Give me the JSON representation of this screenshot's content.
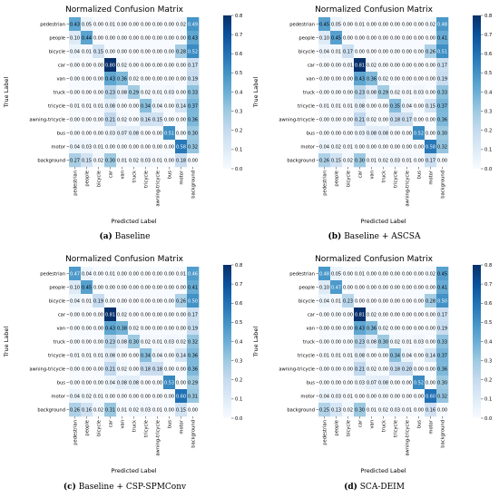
{
  "colormap": [
    "#f7fbff",
    "#deebf7",
    "#c6dbef",
    "#9ecae1",
    "#6baed6",
    "#4292c6",
    "#2171b5",
    "#08519c",
    "#08306b"
  ],
  "colorbar_ticks": [
    "0.0",
    "0.1",
    "0.2",
    "0.3",
    "0.4",
    "0.5",
    "0.6",
    "0.7",
    "0.8"
  ],
  "chart_data": [
    {
      "type": "heatmap",
      "title": "Normalized Confusion Matrix",
      "xlabel": "Predicted Label",
      "ylabel": "True Label",
      "caption_tag": "(a)",
      "caption_text": "Baseline",
      "vmin": 0.0,
      "vmax": 0.8,
      "labels": [
        "pedestrian",
        "people",
        "bicycle",
        "car",
        "van",
        "truck",
        "tricycle",
        "awning-tricycle",
        "bus",
        "motor",
        "background"
      ],
      "matrix": [
        [
          "0.43",
          "0.05",
          "0.00",
          "0.01",
          "0.00",
          "0.00",
          "0.00",
          "0.00",
          "0.00",
          "0.02",
          "0.49"
        ],
        [
          "0.10",
          "0.44",
          "0.00",
          "0.00",
          "0.00",
          "0.00",
          "0.00",
          "0.00",
          "0.00",
          "0.00",
          "0.43"
        ],
        [
          "0.04",
          "0.01",
          "0.15",
          "0.00",
          "0.00",
          "0.00",
          "0.00",
          "0.00",
          "0.00",
          "0.28",
          "0.52"
        ],
        [
          "0.00",
          "0.00",
          "0.00",
          "0.80",
          "0.02",
          "0.00",
          "0.00",
          "0.00",
          "0.00",
          "0.00",
          "0.17"
        ],
        [
          "0.00",
          "0.00",
          "0.00",
          "0.43",
          "0.36",
          "0.02",
          "0.00",
          "0.00",
          "0.00",
          "0.00",
          "0.19"
        ],
        [
          "0.00",
          "0.00",
          "0.00",
          "0.23",
          "0.08",
          "0.29",
          "0.02",
          "0.01",
          "0.03",
          "0.00",
          "0.33"
        ],
        [
          "0.01",
          "0.01",
          "0.01",
          "0.08",
          "0.00",
          "0.00",
          "0.34",
          "0.04",
          "0.00",
          "0.14",
          "0.37"
        ],
        [
          "0.00",
          "0.00",
          "0.00",
          "0.21",
          "0.02",
          "0.00",
          "0.16",
          "0.15",
          "0.00",
          "0.00",
          "0.36"
        ],
        [
          "0.00",
          "0.00",
          "0.00",
          "0.03",
          "0.07",
          "0.08",
          "0.00",
          "0.00",
          "0.51",
          "0.00",
          "0.30"
        ],
        [
          "0.04",
          "0.03",
          "0.01",
          "0.00",
          "0.00",
          "0.00",
          "0.00",
          "0.00",
          "0.00",
          "0.58",
          "0.32"
        ],
        [
          "0.27",
          "0.15",
          "0.02",
          "0.30",
          "0.01",
          "0.02",
          "0.03",
          "0.01",
          "0.00",
          "0.18",
          "0.00"
        ]
      ]
    },
    {
      "type": "heatmap",
      "title": "Normalized Confusion Matrix",
      "xlabel": "Predicted Label",
      "ylabel": "True Label",
      "caption_tag": "(b)",
      "caption_text": "Baseline + ASCSA",
      "vmin": 0.0,
      "vmax": 0.8,
      "labels": [
        "pedestrian",
        "people",
        "bicycle",
        "car",
        "van",
        "truck",
        "tricycle",
        "awning-tricycle",
        "bus",
        "motor",
        "background"
      ],
      "matrix": [
        [
          "0.45",
          "0.05",
          "0.00",
          "0.01",
          "0.00",
          "0.00",
          "0.00",
          "0.00",
          "0.00",
          "0.02",
          "0.48"
        ],
        [
          "0.10",
          "0.45",
          "0.00",
          "0.00",
          "0.00",
          "0.00",
          "0.00",
          "0.00",
          "0.00",
          "0.00",
          "0.41"
        ],
        [
          "0.04",
          "0.01",
          "0.17",
          "0.00",
          "0.00",
          "0.00",
          "0.00",
          "0.00",
          "0.00",
          "0.26",
          "0.51"
        ],
        [
          "0.00",
          "0.00",
          "0.01",
          "0.81",
          "0.02",
          "0.00",
          "0.00",
          "0.00",
          "0.00",
          "0.00",
          "0.17"
        ],
        [
          "0.00",
          "0.00",
          "0.00",
          "0.43",
          "0.36",
          "0.02",
          "0.00",
          "0.00",
          "0.00",
          "0.00",
          "0.19"
        ],
        [
          "0.00",
          "0.00",
          "0.00",
          "0.23",
          "0.08",
          "0.29",
          "0.02",
          "0.01",
          "0.03",
          "0.00",
          "0.33"
        ],
        [
          "0.01",
          "0.01",
          "0.01",
          "0.08",
          "0.00",
          "0.00",
          "0.35",
          "0.04",
          "0.00",
          "0.15",
          "0.37"
        ],
        [
          "0.00",
          "0.00",
          "0.00",
          "0.21",
          "0.02",
          "0.00",
          "0.18",
          "0.17",
          "0.00",
          "0.00",
          "0.36"
        ],
        [
          "0.00",
          "0.00",
          "0.00",
          "0.03",
          "0.08",
          "0.08",
          "0.00",
          "0.00",
          "0.52",
          "0.00",
          "0.30"
        ],
        [
          "0.04",
          "0.02",
          "0.01",
          "0.00",
          "0.00",
          "0.00",
          "0.00",
          "0.00",
          "0.00",
          "0.58",
          "0.32"
        ],
        [
          "0.26",
          "0.15",
          "0.02",
          "0.30",
          "0.01",
          "0.02",
          "0.03",
          "0.01",
          "0.00",
          "0.17",
          "0.00"
        ]
      ]
    },
    {
      "type": "heatmap",
      "title": "Normalized Confusion Matrix",
      "xlabel": "Predicted Label",
      "ylabel": "True Label",
      "caption_tag": "(c)",
      "caption_text": "Baseline + CSP-SPMConv",
      "vmin": 0.0,
      "vmax": 0.8,
      "labels": [
        "pedestrian",
        "people",
        "bicycle",
        "car",
        "van",
        "truck",
        "tricycle",
        "awning-tricycle",
        "bus",
        "motor",
        "background"
      ],
      "matrix": [
        [
          "0.47",
          "0.04",
          "0.00",
          "0.01",
          "0.00",
          "0.00",
          "0.00",
          "0.00",
          "0.00",
          "0.01",
          "0.46"
        ],
        [
          "0.10",
          "0.45",
          "0.00",
          "0.00",
          "0.00",
          "0.00",
          "0.00",
          "0.00",
          "0.00",
          "0.00",
          "0.41"
        ],
        [
          "0.04",
          "0.01",
          "0.19",
          "0.00",
          "0.00",
          "0.00",
          "0.00",
          "0.00",
          "0.00",
          "0.26",
          "0.50"
        ],
        [
          "0.00",
          "0.00",
          "0.00",
          "0.81",
          "0.02",
          "0.00",
          "0.00",
          "0.00",
          "0.00",
          "0.00",
          "0.17"
        ],
        [
          "0.00",
          "0.00",
          "0.00",
          "0.43",
          "0.38",
          "0.02",
          "0.00",
          "0.00",
          "0.00",
          "0.00",
          "0.19"
        ],
        [
          "0.00",
          "0.00",
          "0.00",
          "0.23",
          "0.08",
          "0.30",
          "0.02",
          "0.01",
          "0.03",
          "0.02",
          "0.32"
        ],
        [
          "0.01",
          "0.01",
          "0.01",
          "0.08",
          "0.00",
          "0.00",
          "0.34",
          "0.04",
          "0.00",
          "0.14",
          "0.36"
        ],
        [
          "0.00",
          "0.00",
          "0.00",
          "0.21",
          "0.02",
          "0.00",
          "0.18",
          "0.18",
          "0.00",
          "0.00",
          "0.36"
        ],
        [
          "0.00",
          "0.00",
          "0.00",
          "0.04",
          "0.08",
          "0.08",
          "0.00",
          "0.00",
          "0.53",
          "0.00",
          "0.29"
        ],
        [
          "0.04",
          "0.02",
          "0.01",
          "0.00",
          "0.00",
          "0.00",
          "0.00",
          "0.00",
          "0.00",
          "0.60",
          "0.31"
        ],
        [
          "0.26",
          "0.16",
          "0.02",
          "0.31",
          "0.01",
          "0.02",
          "0.03",
          "0.01",
          "0.00",
          "0.15",
          "0.00"
        ]
      ]
    },
    {
      "type": "heatmap",
      "title": "Normalized Confusion Matrix",
      "xlabel": "Predicted Label",
      "ylabel": "True Label",
      "caption_tag": "(d)",
      "caption_text": "SCA-DEIM",
      "vmin": 0.0,
      "vmax": 0.8,
      "labels": [
        "pedestrian",
        "people",
        "bicycle",
        "car",
        "van",
        "truck",
        "tricycle",
        "awning-tricycle",
        "bus",
        "motor",
        "background"
      ],
      "matrix": [
        [
          "0.48",
          "0.05",
          "0.00",
          "0.01",
          "0.00",
          "0.00",
          "0.00",
          "0.00",
          "0.00",
          "0.02",
          "0.45"
        ],
        [
          "0.10",
          "0.47",
          "0.00",
          "0.00",
          "0.00",
          "0.00",
          "0.00",
          "0.00",
          "0.00",
          "0.00",
          "0.41"
        ],
        [
          "0.04",
          "0.01",
          "0.23",
          "0.00",
          "0.00",
          "0.00",
          "0.00",
          "0.00",
          "0.00",
          "0.28",
          "0.50"
        ],
        [
          "0.00",
          "0.00",
          "0.00",
          "0.81",
          "0.02",
          "0.00",
          "0.00",
          "0.00",
          "0.00",
          "0.00",
          "0.17"
        ],
        [
          "0.00",
          "0.00",
          "0.00",
          "0.43",
          "0.36",
          "0.02",
          "0.00",
          "0.00",
          "0.00",
          "0.00",
          "0.19"
        ],
        [
          "0.00",
          "0.00",
          "0.00",
          "0.23",
          "0.08",
          "0.30",
          "0.02",
          "0.01",
          "0.03",
          "0.00",
          "0.33"
        ],
        [
          "0.01",
          "0.01",
          "0.01",
          "0.08",
          "0.00",
          "0.00",
          "0.34",
          "0.04",
          "0.00",
          "0.14",
          "0.37"
        ],
        [
          "0.00",
          "0.00",
          "0.00",
          "0.21",
          "0.02",
          "0.00",
          "0.18",
          "0.20",
          "0.00",
          "0.00",
          "0.36"
        ],
        [
          "0.00",
          "0.00",
          "0.00",
          "0.03",
          "0.07",
          "0.08",
          "0.00",
          "0.00",
          "0.52",
          "0.00",
          "0.30"
        ],
        [
          "0.04",
          "0.03",
          "0.01",
          "0.00",
          "0.00",
          "0.00",
          "0.00",
          "0.00",
          "0.00",
          "0.60",
          "0.32"
        ],
        [
          "0.25",
          "0.13",
          "0.02",
          "0.30",
          "0.01",
          "0.02",
          "0.03",
          "0.01",
          "0.00",
          "0.16",
          "0.00"
        ]
      ]
    }
  ]
}
